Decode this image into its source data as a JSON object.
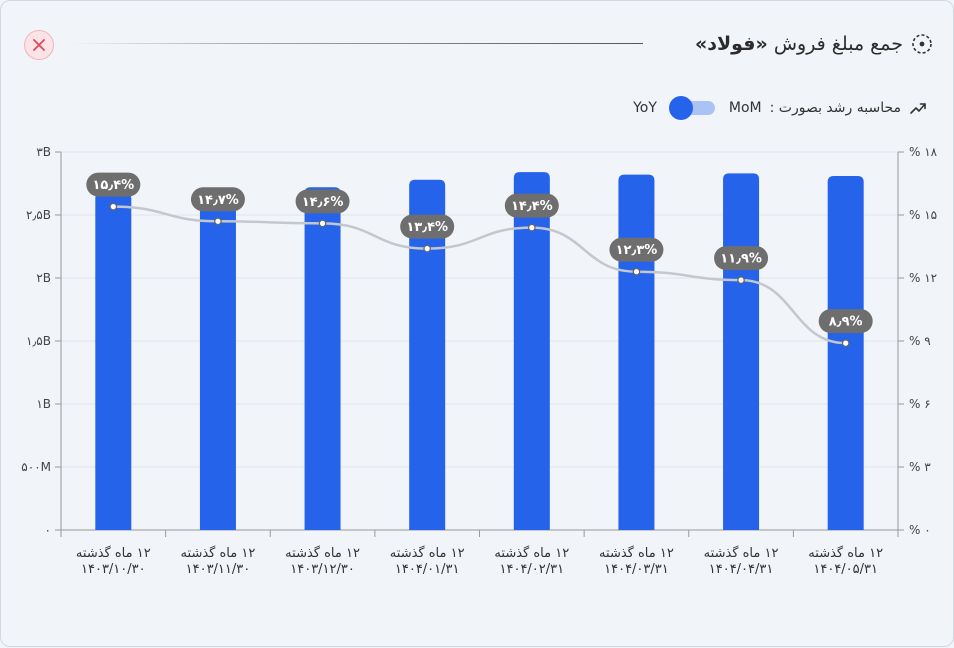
{
  "header": {
    "title_prefix": "جمع مبلغ فروش",
    "title_bold": "«فولاد»"
  },
  "growth_toggle": {
    "label": "محاسبه رشد بصورت :",
    "option_left": "YoY",
    "option_right": "MoM",
    "selected": "YoY"
  },
  "chart_data": {
    "type": "bar",
    "categories": [
      [
        "۱۲ ماه گذشته",
        "۱۴۰۳/۱۰/۳۰"
      ],
      [
        "۱۲ ماه گذشته",
        "۱۴۰۳/۱۱/۳۰"
      ],
      [
        "۱۲ ماه گذشته",
        "۱۴۰۳/۱۲/۳۰"
      ],
      [
        "۱۲ ماه گذشته",
        "۱۴۰۴/۰۱/۳۱"
      ],
      [
        "۱۲ ماه گذشته",
        "۱۴۰۴/۰۲/۳۱"
      ],
      [
        "۱۲ ماه گذشته",
        "۱۴۰۴/۰۳/۳۱"
      ],
      [
        "۱۲ ماه گذشته",
        "۱۴۰۴/۰۴/۳۱"
      ],
      [
        "۱۲ ماه گذشته",
        "۱۴۰۴/۰۵/۳۱"
      ]
    ],
    "bar_values": [
      2.68,
      2.7,
      2.72,
      2.78,
      2.84,
      2.82,
      2.83,
      2.81
    ],
    "line_values": [
      15.4,
      14.7,
      14.6,
      13.4,
      14.4,
      12.3,
      11.9,
      8.9
    ],
    "point_labels": [
      "۱۵٫۴%",
      "۱۴٫۷%",
      "۱۴٫۶%",
      "۱۳٫۴%",
      "۱۴٫۴%",
      "۱۲٫۳%",
      "۱۱٫۹%",
      "۸٫۹%"
    ],
    "left_axis": {
      "ylim": [
        0,
        3
      ],
      "tick_values": [
        0,
        0.5,
        1,
        1.5,
        2,
        2.5,
        3
      ],
      "tick_labels": [
        "۰",
        "۵۰۰M",
        "۱B",
        "۱٫۵B",
        "۲B",
        "۲٫۵B",
        "۳B"
      ]
    },
    "right_axis": {
      "ylim": [
        0,
        18
      ],
      "tick_values": [
        0,
        3,
        6,
        9,
        12,
        15,
        18
      ],
      "tick_labels": [
        "% ۰",
        "% ۳",
        "% ۶",
        "% ۹",
        "% ۱۲",
        "% ۱۵",
        "% ۱۸"
      ]
    },
    "grid": true,
    "colors": {
      "bar": "#2563eb",
      "line": "#c4c7cc",
      "label_bg": "#6e6e6e",
      "grid": "#e1e5ea"
    }
  }
}
